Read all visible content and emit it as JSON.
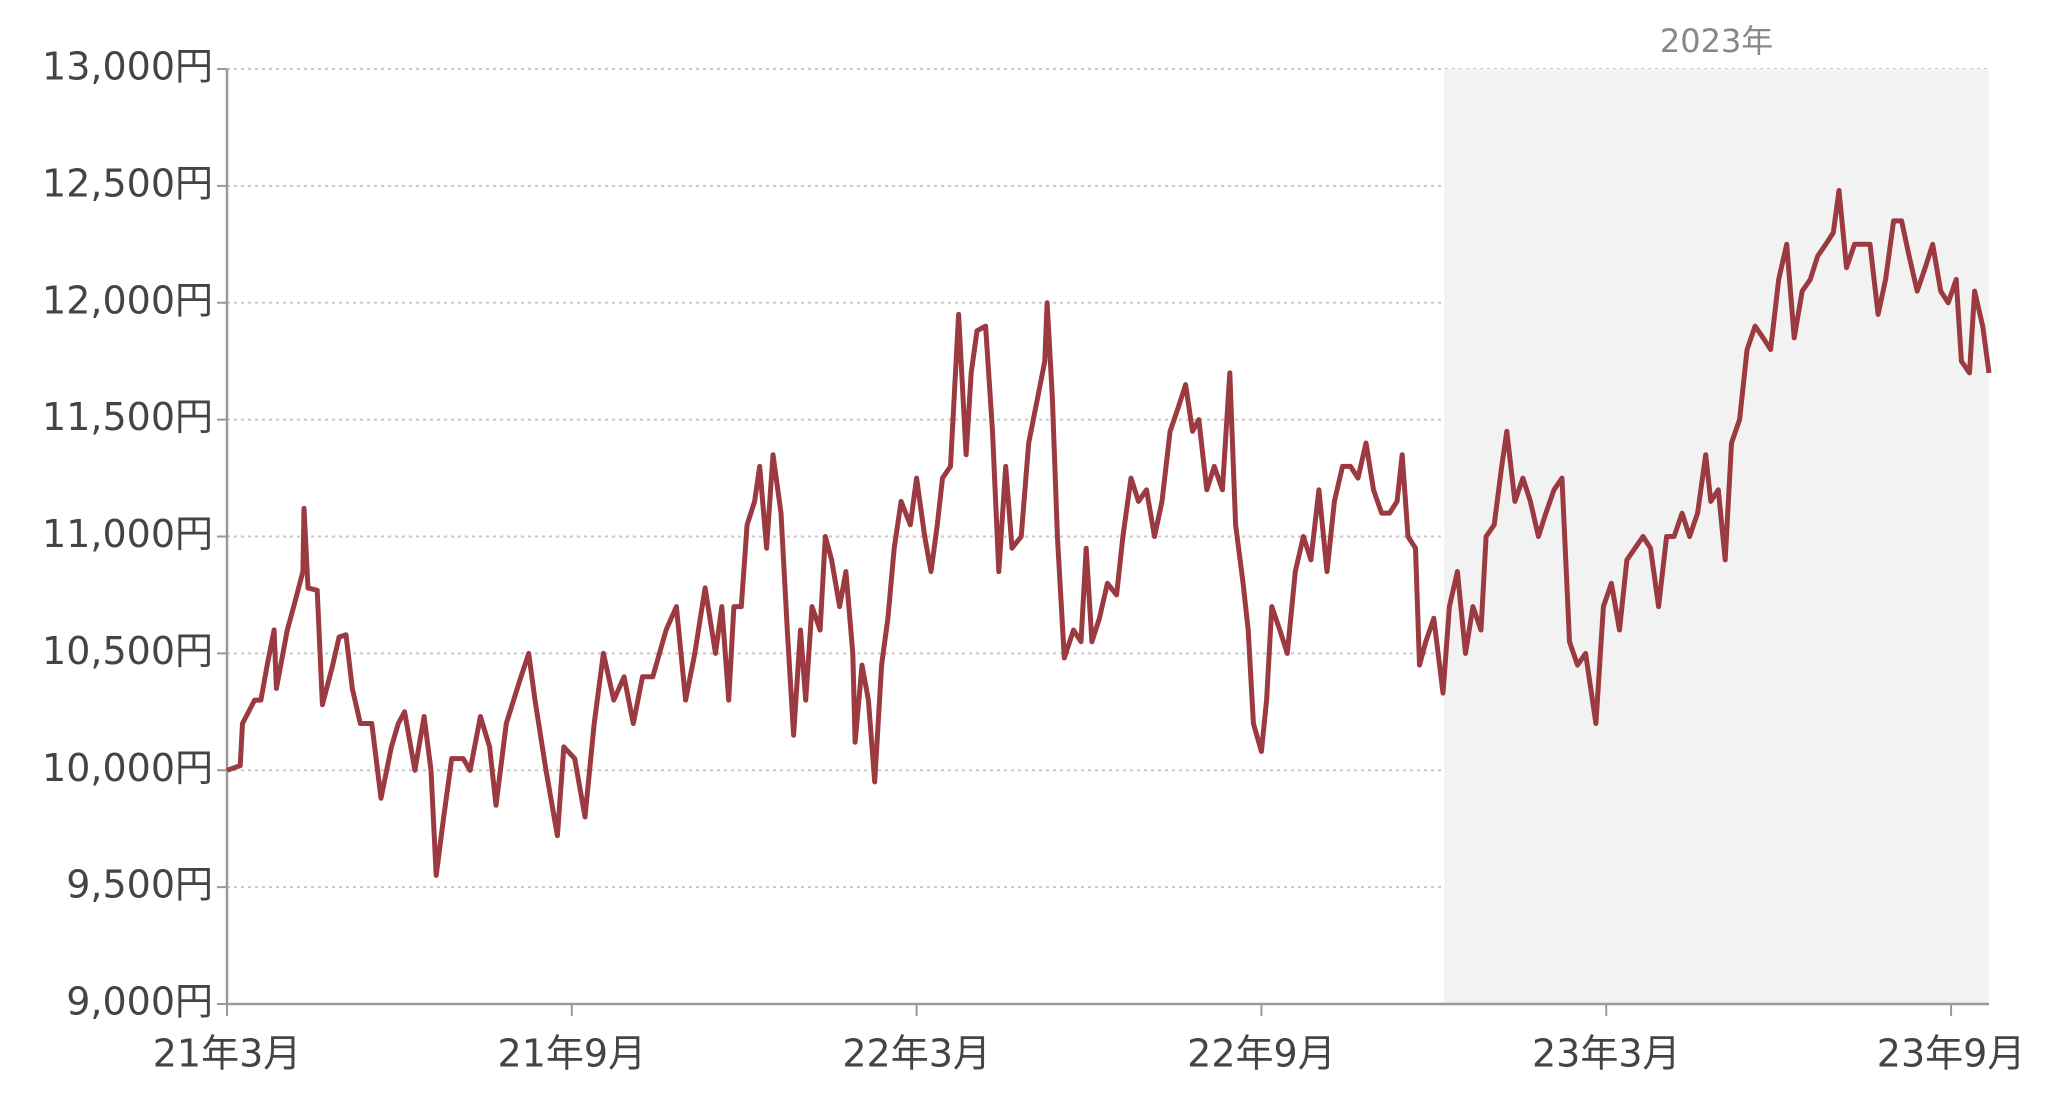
{
  "chart_data": {
    "type": "line",
    "color": "#9b3a40",
    "grid": true,
    "xlim": [
      0,
      30.66
    ],
    "xticks": [
      {
        "value": 0,
        "label": "21年3月"
      },
      {
        "value": 6,
        "label": "21年9月"
      },
      {
        "value": 12,
        "label": "22年3月"
      },
      {
        "value": 18,
        "label": "22年9月"
      },
      {
        "value": 24,
        "label": "23年3月"
      },
      {
        "value": 30,
        "label": "23年9月"
      }
    ],
    "ylim": [
      9000,
      13000
    ],
    "yticks": [
      {
        "value": 9000,
        "label": "9,000円"
      },
      {
        "value": 9500,
        "label": "9,500円"
      },
      {
        "value": 10000,
        "label": "10,000円"
      },
      {
        "value": 10500,
        "label": "10,500円"
      },
      {
        "value": 11000,
        "label": "11,000円"
      },
      {
        "value": 11500,
        "label": "11,500円"
      },
      {
        "value": 12000,
        "label": "12,000円"
      },
      {
        "value": 12500,
        "label": "12,500円"
      },
      {
        "value": 13000,
        "label": "13,000円"
      }
    ],
    "shade": {
      "from": 21.18,
      "to": 30.66,
      "label": "2023年",
      "color": "#f2f2f2"
    },
    "x": [
      0,
      0.23,
      0.27,
      0.48,
      0.59,
      0.7,
      0.82,
      0.86,
      1.05,
      1.16,
      1.32,
      1.34,
      1.41,
      1.57,
      1.66,
      1.84,
      1.95,
      2.07,
      2.18,
      2.32,
      2.52,
      2.68,
      2.86,
      2.98,
      3.09,
      3.27,
      3.43,
      3.55,
      3.64,
      3.77,
      3.91,
      4.11,
      4.23,
      4.41,
      4.57,
      4.68,
      4.86,
      5.09,
      5.25,
      5.36,
      5.55,
      5.75,
      5.86,
      6.05,
      6.23,
      6.39,
      6.55,
      6.73,
      6.91,
      7.07,
      7.23,
      7.41,
      7.64,
      7.82,
      7.98,
      8.14,
      8.32,
      8.5,
      8.61,
      8.73,
      8.82,
      8.95,
      9.05,
      9.18,
      9.27,
      9.39,
      9.5,
      9.64,
      9.75,
      9.86,
      9.98,
      10.07,
      10.18,
      10.32,
      10.41,
      10.52,
      10.66,
      10.77,
      10.89,
      10.93,
      11.05,
      11.16,
      11.27,
      11.39,
      11.5,
      11.61,
      11.73,
      11.89,
      12.0,
      12.14,
      12.25,
      12.36,
      12.45,
      12.59,
      12.73,
      12.86,
      12.95,
      13.05,
      13.2,
      13.32,
      13.43,
      13.55,
      13.66,
      13.82,
      13.95,
      14.11,
      14.23,
      14.27,
      14.36,
      14.45,
      14.57,
      14.73,
      14.86,
      14.95,
      15.05,
      15.18,
      15.32,
      15.48,
      15.59,
      15.73,
      15.86,
      16.0,
      16.14,
      16.27,
      16.41,
      16.55,
      16.68,
      16.8,
      16.91,
      17.05,
      17.18,
      17.32,
      17.45,
      17.55,
      17.68,
      17.77,
      17.86,
      18.0,
      18.09,
      18.18,
      18.32,
      18.45,
      18.59,
      18.73,
      18.86,
      19.0,
      19.14,
      19.27,
      19.41,
      19.55,
      19.68,
      19.82,
      19.95,
      20.09,
      20.23,
      20.36,
      20.45,
      20.55,
      20.68,
      20.75,
      20.86,
      21.0,
      21.16,
      21.27,
      21.41,
      21.55,
      21.68,
      21.82,
      21.91,
      22.05,
      22.18,
      22.27,
      22.41,
      22.55,
      22.68,
      22.82,
      22.95,
      23.09,
      23.23,
      23.36,
      23.5,
      23.64,
      23.82,
      23.95,
      24.09,
      24.23,
      24.36,
      24.5,
      24.64,
      24.77,
      24.91,
      25.05,
      25.18,
      25.32,
      25.45,
      25.59,
      25.73,
      25.82,
      25.95,
      26.07,
      26.18,
      26.32,
      26.45,
      26.59,
      26.73,
      26.86,
      27.0,
      27.14,
      27.27,
      27.41,
      27.55,
      27.68,
      27.82,
      27.95,
      28.05,
      28.18,
      28.32,
      28.45,
      28.59,
      28.73,
      28.86,
      29.0,
      29.14,
      29.27,
      29.41,
      29.55,
      29.68,
      29.82,
      29.95,
      30.09,
      30.18,
      30.32,
      30.41,
      30.55,
      30.66
    ],
    "values": [
      10000,
      10020,
      10200,
      10300,
      10300,
      10450,
      10600,
      10350,
      10600,
      10700,
      10850,
      11120,
      10780,
      10770,
      10280,
      10450,
      10570,
      10580,
      10350,
      10200,
      10200,
      9880,
      10100,
      10200,
      10250,
      10000,
      10230,
      10000,
      9550,
      9800,
      10050,
      10050,
      10000,
      10230,
      10100,
      9850,
      10200,
      10380,
      10500,
      10300,
      10000,
      9720,
      10100,
      10050,
      9800,
      10200,
      10500,
      10300,
      10400,
      10200,
      10400,
      10400,
      10600,
      10700,
      10300,
      10500,
      10780,
      10500,
      10700,
      10300,
      10700,
      10700,
      11050,
      11150,
      11300,
      10950,
      11350,
      11100,
      10600,
      10150,
      10600,
      10300,
      10700,
      10600,
      11000,
      10900,
      10700,
      10850,
      10500,
      10120,
      10450,
      10300,
      9950,
      10450,
      10650,
      10950,
      11150,
      11050,
      11250,
      11000,
      10850,
      11050,
      11250,
      11300,
      11950,
      11350,
      11700,
      11880,
      11900,
      11450,
      10850,
      11300,
      10950,
      11000,
      11400,
      11600,
      11750,
      12000,
      11600,
      11000,
      10480,
      10600,
      10550,
      10950,
      10550,
      10650,
      10800,
      10750,
      11000,
      11250,
      11150,
      11200,
      11000,
      11150,
      11450,
      11550,
      11650,
      11450,
      11500,
      11200,
      11300,
      11200,
      11700,
      11050,
      10800,
      10600,
      10200,
      10080,
      10300,
      10700,
      10600,
      10500,
      10850,
      11000,
      10900,
      11200,
      10850,
      11150,
      11300,
      11300,
      11250,
      11400,
      11200,
      11100,
      11100,
      11150,
      11350,
      11000,
      10950,
      10450,
      10550,
      10650,
      10330,
      10700,
      10850,
      10500,
      10700,
      10600,
      11000,
      11050,
      11300,
      11450,
      11150,
      11250,
      11150,
      11000,
      11100,
      11200,
      11250,
      10550,
      10450,
      10500,
      10200,
      10700,
      10800,
      10600,
      10900,
      10950,
      11000,
      10950,
      10700,
      11000,
      11000,
      11100,
      11000,
      11100,
      11350,
      11150,
      11200,
      10900,
      11400,
      11500,
      11800,
      11900,
      11850,
      11800,
      12100,
      12250,
      11850,
      12050,
      12100,
      12200,
      12250,
      12300,
      12480,
      12150,
      12250,
      12250,
      12250,
      11950,
      12100,
      12350,
      12350,
      12200,
      12050,
      12150,
      12250,
      12050,
      12000,
      12100,
      11750,
      11700,
      12050,
      11900,
      11700
    ]
  }
}
